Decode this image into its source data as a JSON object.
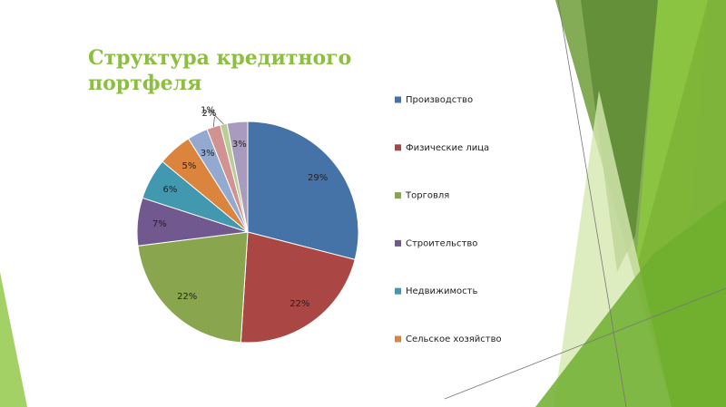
{
  "chart_data": {
    "type": "pie",
    "title": "Структура кредитного портфеля",
    "categories": [
      "Производство",
      "Физические лица",
      "Торговля",
      "Строительство",
      "Недвижимость",
      "Сельское хозяйство",
      null,
      null,
      null,
      null
    ],
    "values": [
      29,
      22,
      22,
      7,
      6,
      5,
      3,
      2,
      1,
      3
    ],
    "value_labels": [
      "29%",
      "22%",
      "22%",
      "7%",
      "6%",
      "5%",
      "3%",
      "2%",
      "1%",
      "3%"
    ],
    "colors": [
      "#4572a7",
      "#aa4643",
      "#89a54e",
      "#71588f",
      "#4198af",
      "#db843d",
      "#93a9cf",
      "#d19392",
      "#b9cd96",
      "#a99bbd"
    ],
    "legend": "right"
  }
}
